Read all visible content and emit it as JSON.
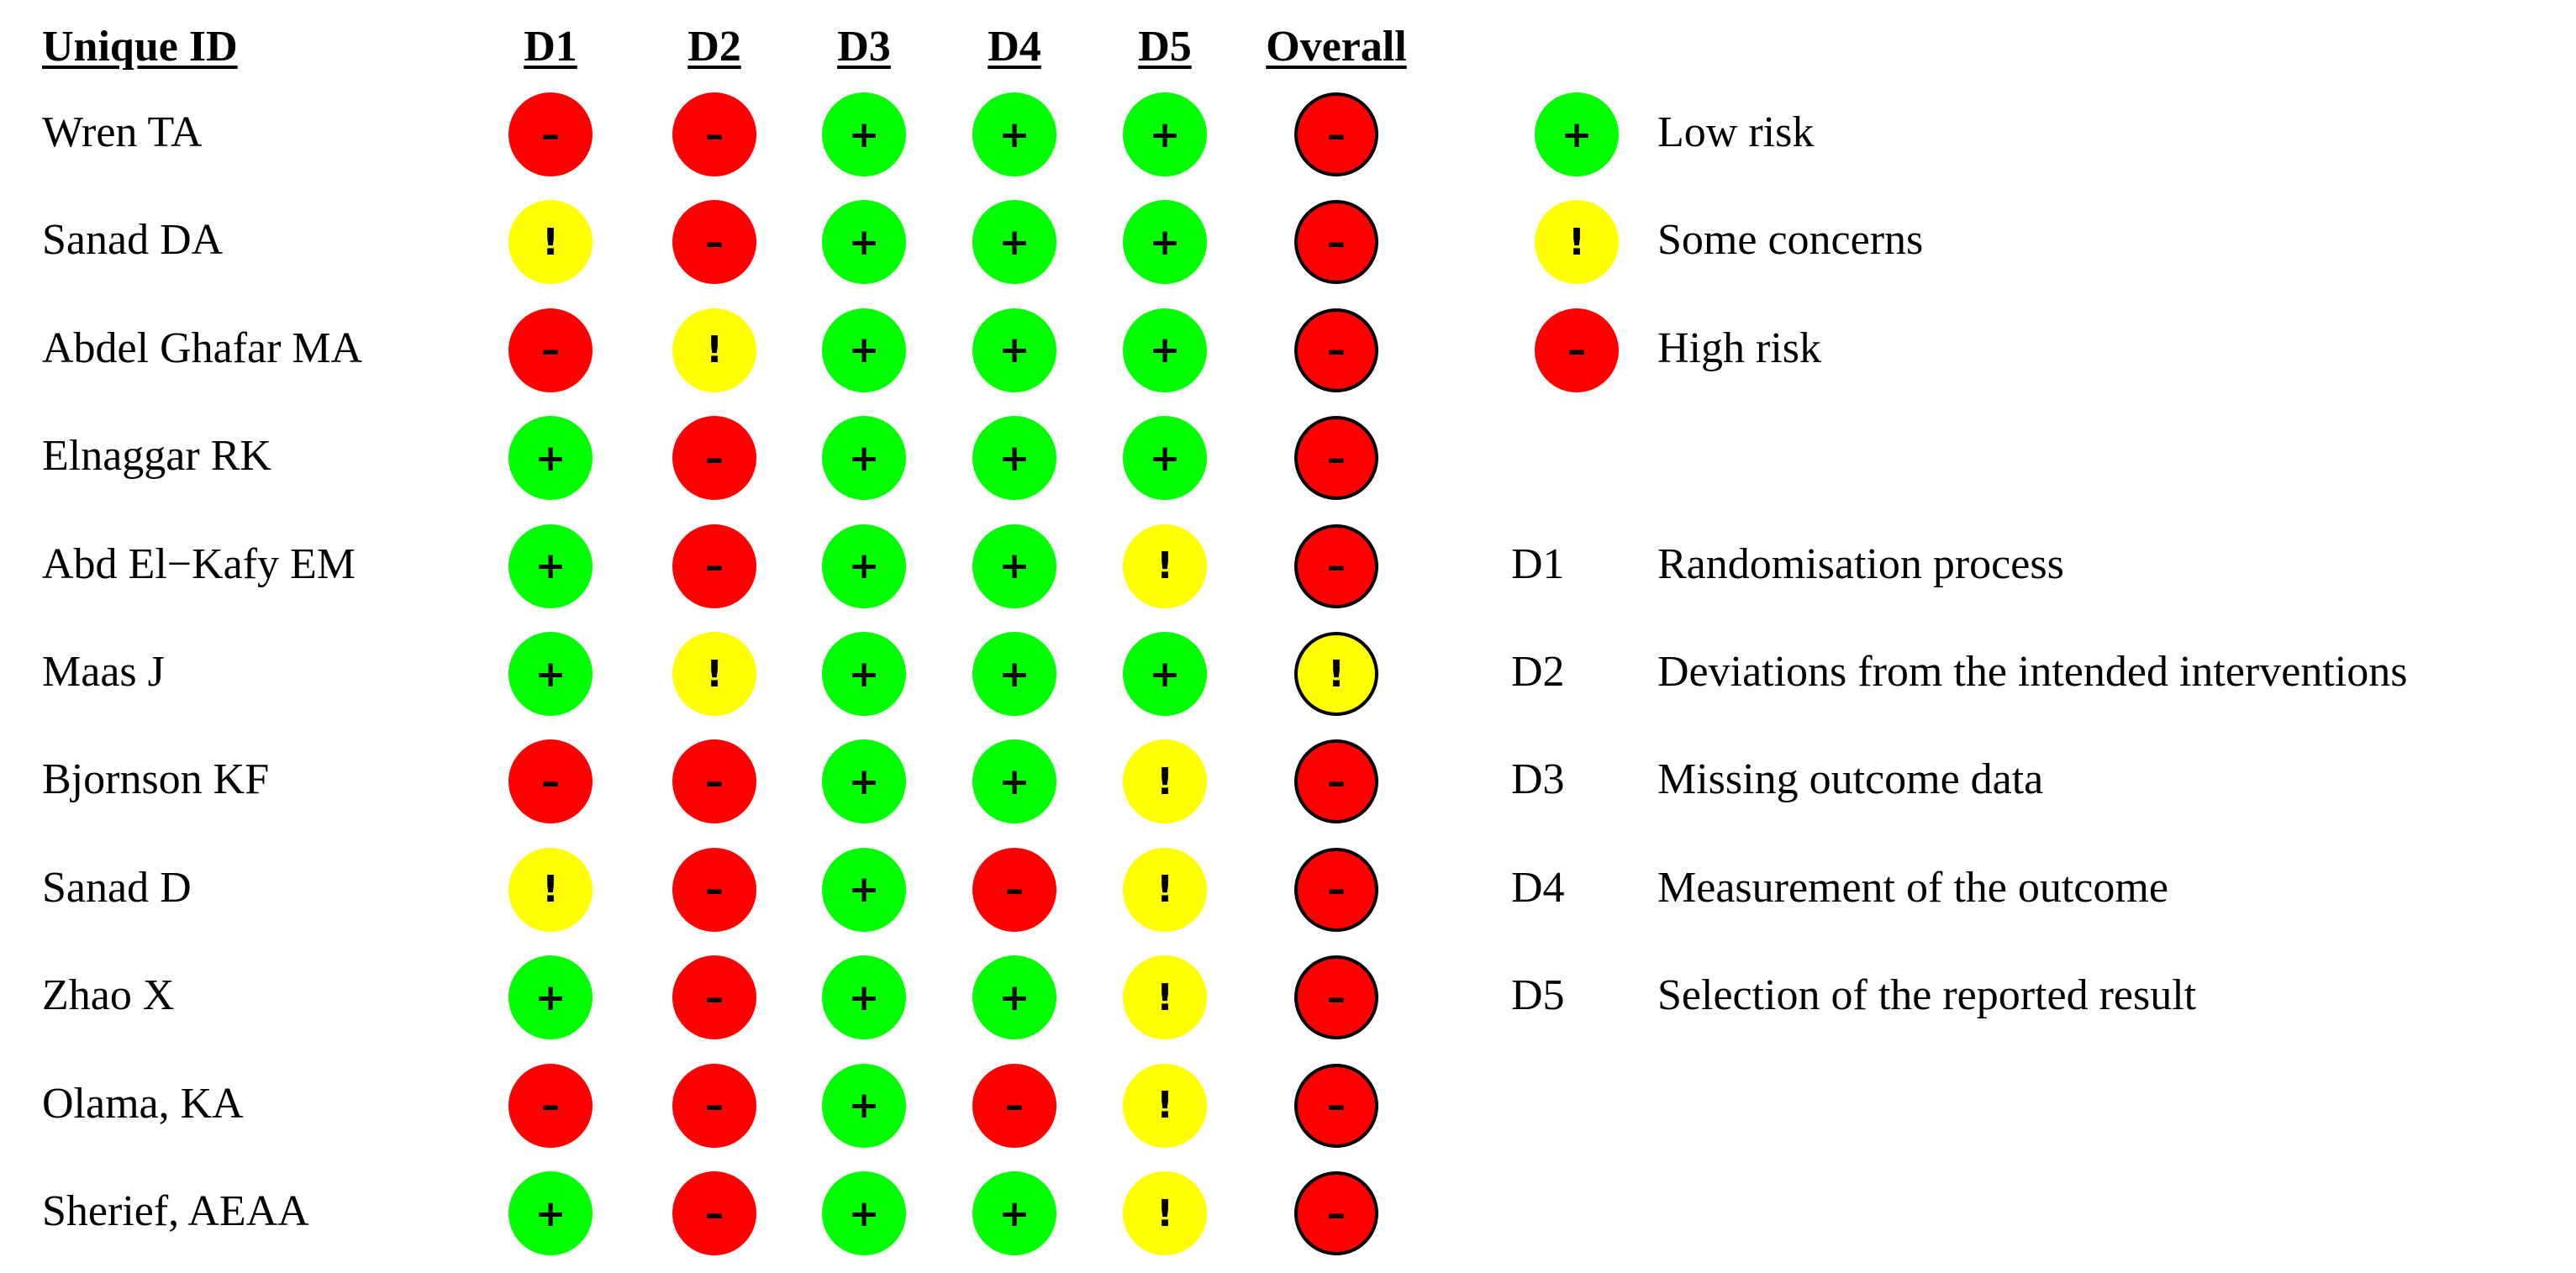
{
  "headers": {
    "unique_id": "Unique ID",
    "domains": [
      "D1",
      "D2",
      "D3",
      "D4",
      "D5"
    ],
    "overall": "Overall"
  },
  "symbols": {
    "low": "+",
    "some": "!",
    "high": "–"
  },
  "colors": {
    "low": "#00FF00",
    "some": "#FFFF00",
    "high": "#FF0000",
    "outline": "#000000"
  },
  "studies": [
    {
      "id": "Wren TA",
      "judgements": [
        "high",
        "high",
        "low",
        "low",
        "low"
      ],
      "overall": "high"
    },
    {
      "id": "Sanad DA",
      "judgements": [
        "some",
        "high",
        "low",
        "low",
        "low"
      ],
      "overall": "high"
    },
    {
      "id": "Abdel Ghafar MA",
      "judgements": [
        "high",
        "some",
        "low",
        "low",
        "low"
      ],
      "overall": "high"
    },
    {
      "id": "Elnaggar RK",
      "judgements": [
        "low",
        "high",
        "low",
        "low",
        "low"
      ],
      "overall": "high"
    },
    {
      "id": "Abd El−Kafy EM",
      "judgements": [
        "low",
        "high",
        "low",
        "low",
        "some"
      ],
      "overall": "high"
    },
    {
      "id": "Maas J",
      "judgements": [
        "low",
        "some",
        "low",
        "low",
        "low"
      ],
      "overall": "some"
    },
    {
      "id": "Bjornson KF",
      "judgements": [
        "high",
        "high",
        "low",
        "low",
        "some"
      ],
      "overall": "high"
    },
    {
      "id": "Sanad D",
      "judgements": [
        "some",
        "high",
        "low",
        "high",
        "some"
      ],
      "overall": "high"
    },
    {
      "id": "Zhao X",
      "judgements": [
        "low",
        "high",
        "low",
        "low",
        "some"
      ],
      "overall": "high"
    },
    {
      "id": "Olama, KA",
      "judgements": [
        "high",
        "high",
        "low",
        "high",
        "some"
      ],
      "overall": "high"
    },
    {
      "id": "Sherief, AEAA",
      "judgements": [
        "low",
        "high",
        "low",
        "low",
        "some"
      ],
      "overall": "high"
    }
  ],
  "legend": {
    "judgements": [
      {
        "level": "low",
        "label": "Low risk"
      },
      {
        "level": "some",
        "label": "Some concerns"
      },
      {
        "level": "high",
        "label": "High risk"
      }
    ],
    "domains": [
      {
        "code": "D1",
        "label": "Randomisation process"
      },
      {
        "code": "D2",
        "label": "Deviations from the intended interventions"
      },
      {
        "code": "D3",
        "label": "Missing outcome data"
      },
      {
        "code": "D4",
        "label": "Measurement of the outcome"
      },
      {
        "code": "D5",
        "label": "Selection of the reported result"
      }
    ]
  }
}
